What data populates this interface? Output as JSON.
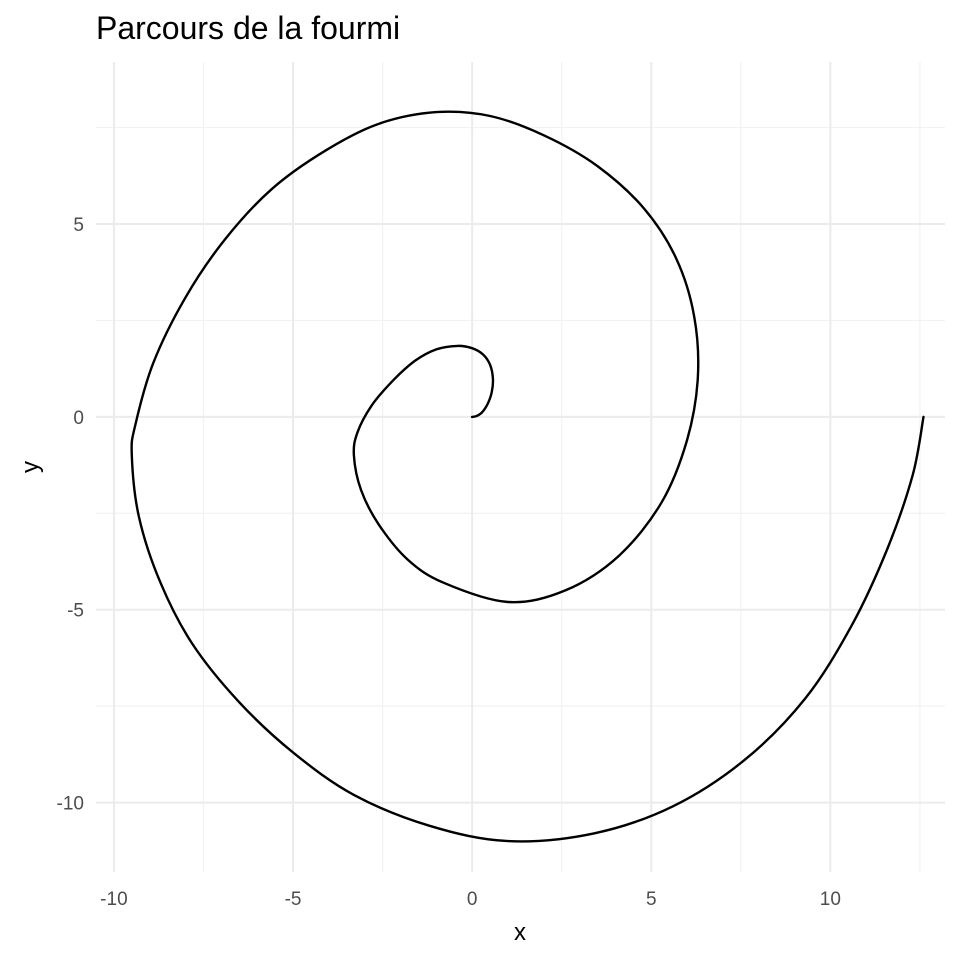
{
  "chart_data": {
    "type": "line",
    "title": "Parcours de la fourmi",
    "xlabel": "x",
    "ylabel": "y",
    "xlim": [
      -10.5,
      13.2
    ],
    "ylim": [
      -11.8,
      9.2
    ],
    "x_ticks": [
      -10,
      -5,
      0,
      5,
      10
    ],
    "y_ticks": [
      -10,
      -5,
      0,
      5
    ],
    "x_tick_labels": [
      "-10",
      "-5",
      "0",
      "5",
      "10"
    ],
    "y_tick_labels": [
      "-10",
      "-5",
      "0",
      "5"
    ],
    "grid": true,
    "legend": "none",
    "line_color": "#000000",
    "series": [
      {
        "x": [
          0.0,
          0.12,
          0.28,
          0.44,
          0.55,
          0.58,
          0.5,
          0.3,
          0.0,
          -0.4,
          -1.0,
          -1.6,
          -2.2,
          -2.8,
          -3.2,
          -3.3,
          -3.1,
          -2.6,
          -1.8,
          -0.8,
          1.0,
          2.6,
          4.1,
          5.3,
          6.0,
          6.3,
          6.2,
          5.7,
          4.8,
          3.5,
          2.0,
          0.5,
          -1.0,
          -2.6,
          -4.1,
          -5.6,
          -6.9,
          -8.0,
          -8.9,
          -9.4,
          -9.5,
          -9.3,
          -8.7,
          -7.8,
          -6.5,
          -5.0,
          -3.3,
          -1.2,
          1.0,
          3.4,
          5.6,
          7.6,
          9.3,
          10.6,
          11.6,
          12.3,
          12.6
        ],
        "y": [
          0.0,
          0.02,
          0.12,
          0.35,
          0.65,
          1.0,
          1.35,
          1.62,
          1.78,
          1.84,
          1.75,
          1.45,
          0.95,
          0.3,
          -0.4,
          -1.0,
          -1.9,
          -2.8,
          -3.7,
          -4.3,
          -4.8,
          -4.5,
          -3.6,
          -2.2,
          -0.6,
          1.0,
          2.6,
          4.1,
          5.4,
          6.5,
          7.3,
          7.8,
          7.9,
          7.6,
          6.9,
          5.9,
          4.6,
          3.1,
          1.4,
          -0.2,
          -1.0,
          -2.6,
          -4.3,
          -5.9,
          -7.4,
          -8.7,
          -9.8,
          -10.6,
          -11.0,
          -10.8,
          -10.1,
          -8.9,
          -7.3,
          -5.4,
          -3.4,
          -1.5,
          0.0
        ]
      }
    ]
  }
}
